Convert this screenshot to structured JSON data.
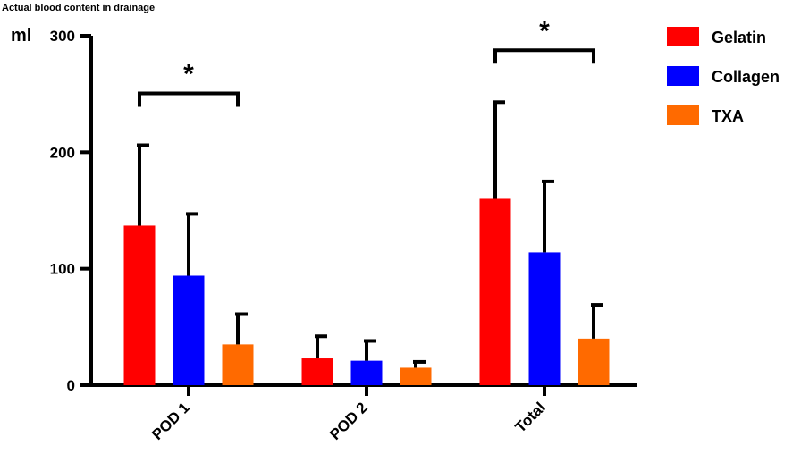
{
  "chart_data": {
    "type": "bar",
    "title": "Actual blood content in drainage",
    "ylabel": "ml",
    "ylim": [
      0,
      300
    ],
    "yticks": [
      0,
      100,
      200,
      300
    ],
    "categories": [
      "POD 1",
      "POD 2",
      "Total"
    ],
    "series": [
      {
        "name": "Gelatin",
        "color": "#ff0000",
        "values": [
          137,
          23,
          160
        ],
        "errors": [
          69,
          19,
          83
        ]
      },
      {
        "name": "Collagen",
        "color": "#0000ff",
        "values": [
          94,
          21,
          114
        ],
        "errors": [
          53,
          17,
          61
        ]
      },
      {
        "name": "TXA",
        "color": "#ff6a00",
        "values": [
          35,
          15,
          40
        ],
        "errors": [
          26,
          5,
          29
        ]
      }
    ],
    "significance": [
      {
        "category": "POD 1",
        "from_series": "Gelatin",
        "to_series": "TXA",
        "label": "*"
      },
      {
        "category": "Total",
        "from_series": "Gelatin",
        "to_series": "TXA",
        "label": "*"
      }
    ],
    "legend_position": "top-right",
    "grid": false
  }
}
